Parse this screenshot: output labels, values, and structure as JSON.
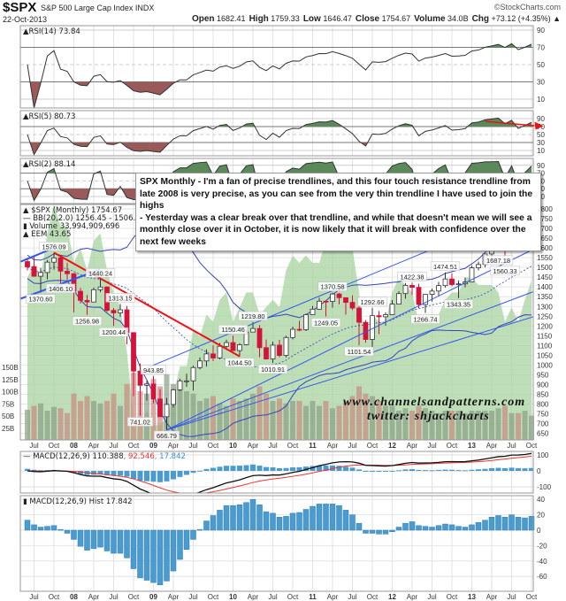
{
  "header": {
    "symbol": "$SPX",
    "name": "S&P 500 Large Cap Index INDX",
    "copyright": "©StockCharts.com",
    "date": "22-Oct-2013",
    "quote": [
      {
        "label": "Open",
        "value": "1682.41"
      },
      {
        "label": "High",
        "value": "1759.33"
      },
      {
        "label": "Low",
        "value": "1646.47"
      },
      {
        "label": "Close",
        "value": "1754.67"
      },
      {
        "label": "Volume",
        "value": "34.0B"
      },
      {
        "label": "Chg",
        "value": "+73.12 (+4.35%) ▲"
      }
    ]
  },
  "panels": {
    "rsi14": {
      "label": "RSI(14) 73.84",
      "period": 14,
      "levels": [
        "90",
        "70",
        "50",
        "30",
        "10"
      ]
    },
    "rsi5": {
      "label": "RSI(5) 80.73",
      "period": 5,
      "levels": [
        "90",
        "70",
        "50",
        "30",
        "10"
      ]
    },
    "rsi2": {
      "label": "RSI(2) 88.14",
      "period": 2,
      "levels": [
        "90",
        "70",
        "50",
        "30",
        "10"
      ]
    },
    "price": {
      "legend": [
        "$SPX (Monthly) 1754.67",
        "BB(20,2.0) 1256.45 - 1506.57 - 1756.70",
        "Volume 33,994,909,696",
        "EEM 43.65"
      ],
      "axis": [
        "1800",
        "1750",
        "1700",
        "1650",
        "1600",
        "1550",
        "1500",
        "1450",
        "1400",
        "1350",
        "1300",
        "1250",
        "1200",
        "1150",
        "1100",
        "1050",
        "1000",
        "950",
        "900",
        "850",
        "800",
        "750",
        "700",
        "650"
      ],
      "volume_axis": [
        "150B",
        "125B",
        "100B",
        "75B",
        "50B",
        "25B"
      ]
    },
    "macd": {
      "label": "MACD(12,26,9) 110.388",
      "signal": ", 92.546",
      "hist": ", 17.842",
      "axis": [
        "100",
        "0",
        "-100"
      ]
    },
    "hist": {
      "label": "MACD(12,26,9) Hist 17.842",
      "axis": [
        "40",
        "20",
        "0",
        "-20",
        "-40",
        "-60"
      ]
    }
  },
  "annotation": {
    "lines": [
      "SPX Monthly - I'm a fan of precise trendlines, and this four touch resistance trendline from late 2008 is very precise, as you can see from the very thin trendline I have used to join the highs",
      "- Yesterday was a clear break over that trendline, and while that doesn't mean we will see a monthly close over it in October, it is now likely that it will break with confidence over the next few weeks"
    ]
  },
  "watermark": {
    "site": "www.channelsandpatterns.com",
    "twitter": "twitter: shjackcharts"
  },
  "colors": {
    "up": "#ffffff",
    "down": "#d2143a",
    "bb": "#3344bb",
    "eem": "#a8d3a0",
    "rsi_high": "#5a8a5a",
    "rsi_low": "#9b5a5a",
    "hist": "#4a9bd0",
    "trend_red": "#ee1111",
    "trend_blue": "#3355ee"
  },
  "chart_data": {
    "type": "candlestick",
    "x_labels": [
      "Jul",
      "Oct",
      "08",
      "Apr",
      "Jul",
      "Oct",
      "09",
      "Apr",
      "Jul",
      "Oct",
      "10",
      "Apr",
      "Jul",
      "Oct",
      "11",
      "Apr",
      "Jul",
      "Oct",
      "12",
      "Apr",
      "Jul",
      "Oct",
      "13",
      "Apr",
      "Jul",
      "Oct"
    ],
    "months": [
      "2007-06",
      "2007-07",
      "2007-08",
      "2007-09",
      "2007-10",
      "2007-11",
      "2007-12",
      "2008-01",
      "2008-02",
      "2008-03",
      "2008-04",
      "2008-05",
      "2008-06",
      "2008-07",
      "2008-08",
      "2008-09",
      "2008-10",
      "2008-11",
      "2008-12",
      "2009-01",
      "2009-02",
      "2009-03",
      "2009-04",
      "2009-05",
      "2009-06",
      "2009-07",
      "2009-08",
      "2009-09",
      "2009-10",
      "2009-11",
      "2009-12",
      "2010-01",
      "2010-02",
      "2010-03",
      "2010-04",
      "2010-05",
      "2010-06",
      "2010-07",
      "2010-08",
      "2010-09",
      "2010-10",
      "2010-11",
      "2010-12",
      "2011-01",
      "2011-02",
      "2011-03",
      "2011-04",
      "2011-05",
      "2011-06",
      "2011-07",
      "2011-08",
      "2011-09",
      "2011-10",
      "2011-11",
      "2011-12",
      "2012-01",
      "2012-02",
      "2012-03",
      "2012-04",
      "2012-05",
      "2012-06",
      "2012-07",
      "2012-08",
      "2012-09",
      "2012-10",
      "2012-11",
      "2012-12",
      "2013-01",
      "2013-02",
      "2013-03",
      "2013-04",
      "2013-05",
      "2013-06",
      "2013-07",
      "2013-08",
      "2013-09",
      "2013-10"
    ],
    "ohlc": [
      [
        1530,
        1540,
        1485,
        1503
      ],
      [
        1504,
        1556,
        1452,
        1455
      ],
      [
        1455,
        1497,
        1370.6,
        1474
      ],
      [
        1474,
        1538,
        1439,
        1527
      ],
      [
        1527,
        1576.09,
        1489,
        1549
      ],
      [
        1549,
        1553,
        1406.1,
        1481
      ],
      [
        1481,
        1524,
        1435,
        1468
      ],
      [
        1468,
        1471,
        1270,
        1378
      ],
      [
        1378,
        1396,
        1316,
        1331
      ],
      [
        1331,
        1359,
        1256.98,
        1323
      ],
      [
        1323,
        1397,
        1323,
        1386
      ],
      [
        1386,
        1440.24,
        1373,
        1400
      ],
      [
        1400,
        1404,
        1272,
        1280
      ],
      [
        1280,
        1292,
        1200.44,
        1267
      ],
      [
        1267,
        1313.15,
        1248,
        1283
      ],
      [
        1283,
        1303,
        1106,
        1166
      ],
      [
        1166,
        1167,
        840,
        969
      ],
      [
        969,
        1008,
        741.02,
        896
      ],
      [
        896,
        919,
        818,
        903
      ],
      [
        903,
        943.85,
        804,
        826
      ],
      [
        826,
        876,
        735,
        735
      ],
      [
        735,
        832,
        666.79,
        798
      ],
      [
        798,
        878,
        783,
        873
      ],
      [
        873,
        930,
        866,
        919
      ],
      [
        919,
        956,
        888,
        919
      ],
      [
        919,
        997,
        869,
        987
      ],
      [
        987,
        1039,
        978,
        1021
      ],
      [
        1021,
        1080,
        992,
        1057
      ],
      [
        1057,
        1101,
        1020,
        1036
      ],
      [
        1036,
        1113,
        1029,
        1096
      ],
      [
        1096,
        1130,
        1086,
        1115
      ],
      [
        1115,
        1150.46,
        1071,
        1074
      ],
      [
        1074,
        1112,
        1044.5,
        1104
      ],
      [
        1104,
        1181,
        1101,
        1169
      ],
      [
        1169,
        1219.8,
        1170,
        1187
      ],
      [
        1187,
        1205,
        1040,
        1089
      ],
      [
        1089,
        1131,
        1028,
        1031
      ],
      [
        1031,
        1120,
        1010.91,
        1102
      ],
      [
        1102,
        1129,
        1040,
        1049
      ],
      [
        1049,
        1150,
        1039,
        1141
      ],
      [
        1141,
        1196,
        1131,
        1183
      ],
      [
        1183,
        1227,
        1173,
        1181
      ],
      [
        1181,
        1263,
        1174,
        1258
      ],
      [
        1258,
        1302,
        1258,
        1286
      ],
      [
        1286,
        1344,
        1283,
        1327
      ],
      [
        1327,
        1332,
        1249.05,
        1326
      ],
      [
        1326,
        1370.58,
        1294,
        1364
      ],
      [
        1364,
        1370,
        1311,
        1345
      ],
      [
        1345,
        1346,
        1258,
        1321
      ],
      [
        1321,
        1356,
        1282,
        1292
      ],
      [
        1292,
        1307,
        1101.54,
        1219
      ],
      [
        1219,
        1230,
        1114,
        1131
      ],
      [
        1131,
        1292.66,
        1074,
        1253
      ],
      [
        1253,
        1277,
        1158,
        1247
      ],
      [
        1247,
        1270,
        1202,
        1258
      ],
      [
        1258,
        1333,
        1258,
        1312
      ],
      [
        1312,
        1378,
        1312,
        1366
      ],
      [
        1366,
        1420,
        1340,
        1408
      ],
      [
        1408,
        1422.38,
        1358,
        1398
      ],
      [
        1398,
        1416,
        1291,
        1310
      ],
      [
        1310,
        1363,
        1266.74,
        1362
      ],
      [
        1362,
        1392,
        1325,
        1379
      ],
      [
        1379,
        1426,
        1354,
        1407
      ],
      [
        1407,
        1474.51,
        1397,
        1441
      ],
      [
        1441,
        1470,
        1403,
        1412
      ],
      [
        1412,
        1434,
        1343.35,
        1416
      ],
      [
        1416,
        1448,
        1398,
        1426
      ],
      [
        1426,
        1509,
        1426,
        1498
      ],
      [
        1498,
        1530,
        1485,
        1515
      ],
      [
        1515,
        1570,
        1501,
        1569
      ],
      [
        1569,
        1598,
        1536,
        1598
      ],
      [
        1598,
        1687.18,
        1581,
        1631
      ],
      [
        1631,
        1654,
        1560.33,
        1606
      ],
      [
        1606,
        1698,
        1605,
        1686
      ],
      [
        1686,
        1709,
        1627,
        1633
      ],
      [
        1633,
        1730,
        1633,
        1682
      ],
      [
        1682.41,
        1759.33,
        1646.47,
        1754.67
      ]
    ],
    "volume_billions": [
      62,
      70,
      75,
      60,
      68,
      65,
      55,
      95,
      80,
      90,
      80,
      75,
      80,
      95,
      70,
      115,
      138,
      100,
      95,
      125,
      110,
      135,
      115,
      105,
      100,
      95,
      80,
      85,
      90,
      75,
      70,
      85,
      80,
      85,
      95,
      110,
      95,
      80,
      85,
      75,
      80,
      80,
      70,
      80,
      70,
      80,
      65,
      70,
      80,
      90,
      110,
      95,
      90,
      80,
      70,
      70,
      60,
      65,
      60,
      70,
      65,
      60,
      55,
      60,
      60,
      60,
      55,
      60,
      60,
      60,
      60,
      65,
      70,
      55,
      55,
      60,
      50
    ],
    "eem": [
      44,
      46,
      44,
      50,
      54,
      51,
      51,
      46,
      48,
      45,
      49,
      50,
      45,
      42,
      40,
      34,
      25,
      24,
      26,
      24,
      24,
      25,
      28,
      32,
      32,
      37,
      36,
      39,
      38,
      41,
      42,
      38,
      40,
      42,
      42,
      39,
      40,
      41,
      40,
      45,
      47,
      46,
      47,
      46,
      46,
      49,
      50,
      48,
      48,
      48,
      42,
      35,
      39,
      38,
      38,
      42,
      44,
      43,
      42,
      38,
      39,
      39,
      39,
      41,
      42,
      42,
      44,
      44,
      43,
      43,
      43,
      42,
      38,
      40,
      38,
      41,
      43.65
    ],
    "macd_hist": [
      13,
      7,
      4,
      5,
      6,
      1,
      -4,
      -12,
      -21,
      -26,
      -24,
      -22,
      -27,
      -30,
      -30,
      -36,
      -50,
      -62,
      -65,
      -68,
      -71,
      -66,
      -53,
      -38,
      -25,
      -12,
      1,
      12,
      19,
      26,
      32,
      32,
      33,
      36,
      40,
      33,
      24,
      22,
      17,
      18,
      22,
      23,
      27,
      31,
      34,
      34,
      34,
      32,
      26,
      20,
      9,
      -4,
      -4,
      -5,
      -5,
      -2,
      4,
      9,
      11,
      6,
      5,
      4,
      6,
      8,
      7,
      5,
      4,
      7,
      10,
      13,
      17,
      19,
      17,
      20,
      17,
      16,
      18
    ],
    "price_labels": [
      {
        "month": "2007-10",
        "value": "1576.09",
        "pos": "above"
      },
      {
        "month": "2007-08",
        "value": "1370.60",
        "pos": "below"
      },
      {
        "month": "2007-11",
        "value": "1406.10",
        "pos": "below"
      },
      {
        "month": "2008-05",
        "value": "1440.24",
        "pos": "above"
      },
      {
        "month": "2008-03",
        "value": "1256.98",
        "pos": "below"
      },
      {
        "month": "2008-08",
        "value": "1313.15",
        "pos": "above"
      },
      {
        "month": "2008-07",
        "value": "1200.44",
        "pos": "below"
      },
      {
        "month": "2009-01",
        "value": "943.85",
        "pos": "above"
      },
      {
        "month": "2008-11",
        "value": "741.02",
        "pos": "below"
      },
      {
        "month": "2009-03",
        "value": "666.79",
        "pos": "below"
      },
      {
        "month": "2010-01",
        "value": "1150.46",
        "pos": "above"
      },
      {
        "month": "2010-02",
        "value": "1044.50",
        "pos": "below"
      },
      {
        "month": "2010-04",
        "value": "1219.80",
        "pos": "above"
      },
      {
        "month": "2010-07",
        "value": "1010.91",
        "pos": "below"
      },
      {
        "month": "2011-04",
        "value": "1370.58",
        "pos": "above"
      },
      {
        "month": "2011-03",
        "value": "1249.05",
        "pos": "below"
      },
      {
        "month": "2011-10",
        "value": "1292.66",
        "pos": "above"
      },
      {
        "month": "2011-08",
        "value": "1101.54",
        "pos": "below"
      },
      {
        "month": "2012-04",
        "value": "1422.38",
        "pos": "above"
      },
      {
        "month": "2012-06",
        "value": "1266.74",
        "pos": "below"
      },
      {
        "month": "2012-09",
        "value": "1474.51",
        "pos": "above"
      },
      {
        "month": "2012-11",
        "value": "1343.35",
        "pos": "below"
      },
      {
        "month": "2013-05",
        "value": "1687.18",
        "pos": "above"
      },
      {
        "month": "2013-06",
        "value": "1560.33",
        "pos": "below"
      }
    ],
    "trendlines": [
      {
        "color": "red",
        "from": [
          "2007-10",
          1576
        ],
        "to": [
          "2010-02",
          1044.5
        ]
      },
      {
        "color": "blue",
        "from": [
          "2008-12",
          985
        ],
        "to": [
          "2013-11",
          1820
        ]
      },
      {
        "color": "blue",
        "from": [
          "2009-03",
          667
        ],
        "to": [
          "2013-11",
          1605
        ]
      },
      {
        "color": "blue",
        "from": [
          "2009-03",
          667
        ],
        "to": [
          "2013-11",
          1385
        ]
      },
      {
        "color": "blue",
        "from": [
          "2009-03",
          667
        ],
        "to": [
          "2013-11",
          1255
        ]
      },
      {
        "color": "blue",
        "from": [
          "2007-05",
          1530
        ],
        "to": [
          "2007-10",
          1600
        ],
        "thick": true
      },
      {
        "color": "blue",
        "from": [
          "2007-05",
          1340
        ],
        "to": [
          "2008-05",
          1490
        ],
        "thick": true
      }
    ],
    "rsi5_arrow": {
      "from": [
        "2013-03",
        83
      ],
      "to": [
        "2013-11",
        71
      ]
    },
    "ylim": [
      650,
      1800
    ]
  }
}
